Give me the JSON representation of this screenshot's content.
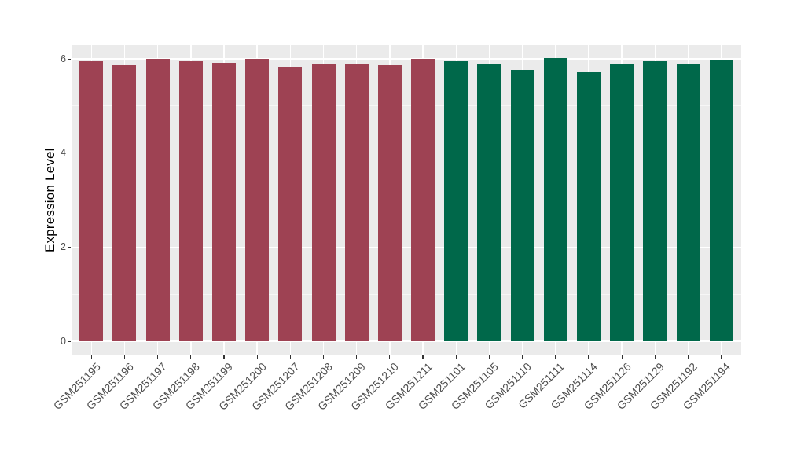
{
  "chart_data": {
    "type": "bar",
    "title": "",
    "xlabel": "",
    "ylabel": "Expression Level",
    "ylim": [
      0,
      6.3
    ],
    "yticks": [
      0,
      2,
      4,
      6
    ],
    "yticks_minor": [
      1,
      3,
      5
    ],
    "grid": true,
    "legend_position": "none",
    "categories": [
      "GSM251195",
      "GSM251196",
      "GSM251197",
      "GSM251198",
      "GSM251199",
      "GSM251200",
      "GSM251207",
      "GSM251208",
      "GSM251209",
      "GSM251210",
      "GSM251211",
      "GSM251101",
      "GSM251105",
      "GSM251110",
      "GSM251111",
      "GSM251114",
      "GSM251126",
      "GSM251129",
      "GSM251192",
      "GSM251194"
    ],
    "values": [
      5.95,
      5.86,
      6.0,
      5.96,
      5.92,
      6.0,
      5.84,
      5.88,
      5.88,
      5.87,
      6.0,
      5.95,
      5.89,
      5.76,
      6.02,
      5.74,
      5.88,
      5.95,
      5.89,
      5.99
    ],
    "groups": [
      "group1",
      "group1",
      "group1",
      "group1",
      "group1",
      "group1",
      "group1",
      "group1",
      "group1",
      "group1",
      "group1",
      "group2",
      "group2",
      "group2",
      "group2",
      "group2",
      "group2",
      "group2",
      "group2",
      "group2"
    ],
    "group_colors": {
      "group1": "#9E4253",
      "group2": "#00684A"
    },
    "colors": {
      "figure_bg": "#FFFFFF",
      "panel_bg": "#EBEBEB",
      "grid_major": "#FFFFFF",
      "axis_tick": "#333333",
      "axis_text": "#4D4D4D",
      "axis_title": "#000000"
    }
  }
}
